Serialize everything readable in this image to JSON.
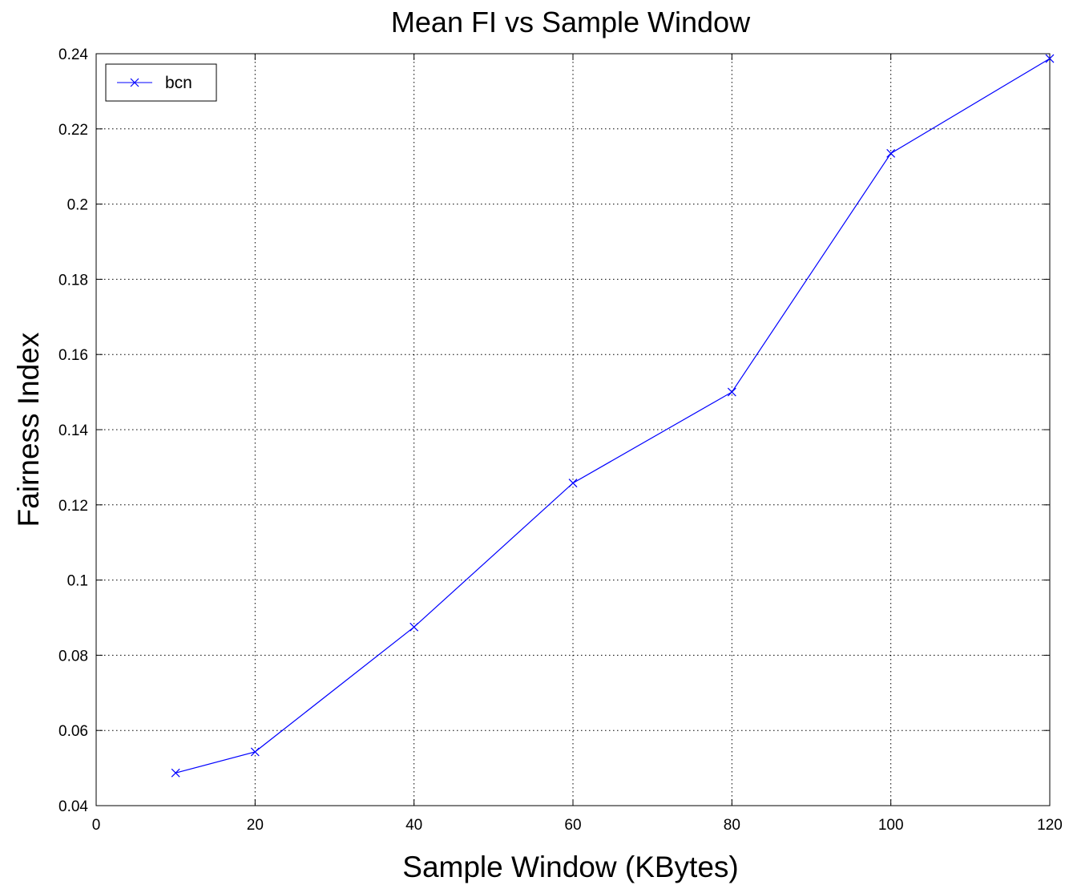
{
  "chart_data": {
    "type": "line",
    "title": "Mean FI vs Sample Window",
    "xlabel": "Sample Window (KBytes)",
    "ylabel": "Fairness Index",
    "xlim": [
      0,
      120
    ],
    "ylim": [
      0.04,
      0.24
    ],
    "xticks": [
      "0",
      "20",
      "40",
      "60",
      "80",
      "100",
      "120"
    ],
    "yticks": [
      "0.04",
      "0.06",
      "0.08",
      "0.1",
      "0.12",
      "0.14",
      "0.16",
      "0.18",
      "0.2",
      "0.22",
      "0.24"
    ],
    "grid": true,
    "legend_position": "top-left",
    "series": [
      {
        "name": "bcn",
        "color": "#0000ff",
        "marker": "x",
        "x": [
          10,
          20,
          40,
          60,
          80,
          100,
          120
        ],
        "y": [
          0.0487,
          0.0543,
          0.0875,
          0.1258,
          0.15,
          0.2135,
          0.2387
        ]
      }
    ]
  }
}
